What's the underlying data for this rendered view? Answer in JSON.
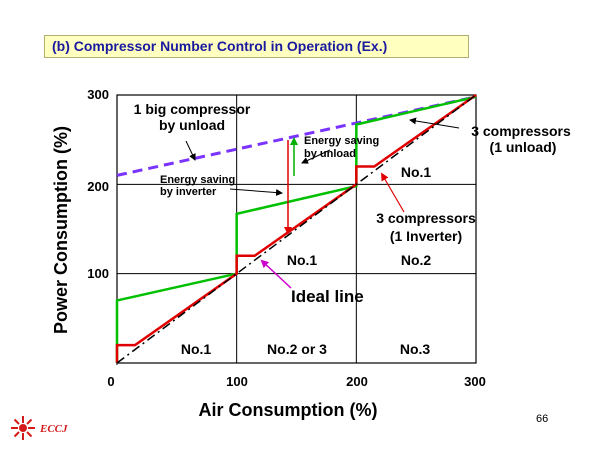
{
  "title": "(b) Compressor Number Control in Operation (Ex.)",
  "page_number": "66",
  "logo_text": "ECCJ",
  "chart_data": {
    "type": "line",
    "xlabel": "Air Consumption (%)",
    "ylabel": "Power Consumption (%)",
    "xlim": [
      0,
      300
    ],
    "ylim": [
      0,
      300
    ],
    "x_ticks": [
      "0",
      "100",
      "200",
      "300"
    ],
    "y_ticks": [
      "100",
      "200",
      "300"
    ],
    "grid": true,
    "series": [
      {
        "color": "#7b33ff",
        "style": "dashed",
        "points": [
          [
            0,
            210
          ],
          [
            300,
            298
          ]
        ]
      },
      {
        "color": "#00c000",
        "style": "solid",
        "points": [
          [
            0,
            0
          ],
          [
            0,
            70
          ],
          [
            100,
            100
          ],
          [
            100,
            167
          ],
          [
            200,
            198
          ],
          [
            200,
            267
          ],
          [
            300,
            298
          ]
        ]
      },
      {
        "color": "#e00000",
        "style": "solid",
        "points": [
          [
            0,
            0
          ],
          [
            0,
            20
          ],
          [
            15,
            20
          ],
          [
            100,
            100
          ],
          [
            100,
            120
          ],
          [
            115,
            120
          ],
          [
            200,
            200
          ],
          [
            200,
            220
          ],
          [
            215,
            220
          ],
          [
            300,
            300
          ]
        ]
      },
      {
        "color": "#000000",
        "style": "dash-dot",
        "points": [
          [
            0,
            0
          ],
          [
            300,
            300
          ]
        ]
      }
    ],
    "annotations": {
      "big_compressor_line1": "1 big compressor",
      "big_compressor_line2": "by unload",
      "three_unload_line1": "3 compressors",
      "three_unload_line2": "(1 unload)",
      "energy_unload_line1": "Energy saving",
      "energy_unload_line2": "by unload",
      "energy_inverter_line1": "Energy saving",
      "energy_inverter_line2": "by inverter",
      "three_inverter_line1": "3 compressors",
      "three_inverter_line2": "(1 Inverter)",
      "ideal_line": "Ideal line",
      "zone_bottom_1": "No.1",
      "zone_bottom_2": "No.2 or 3",
      "zone_bottom_3": "No.3",
      "zone_mid_1": "No.1",
      "zone_mid_2": "No.2",
      "zone_top_1": "No.1"
    }
  }
}
